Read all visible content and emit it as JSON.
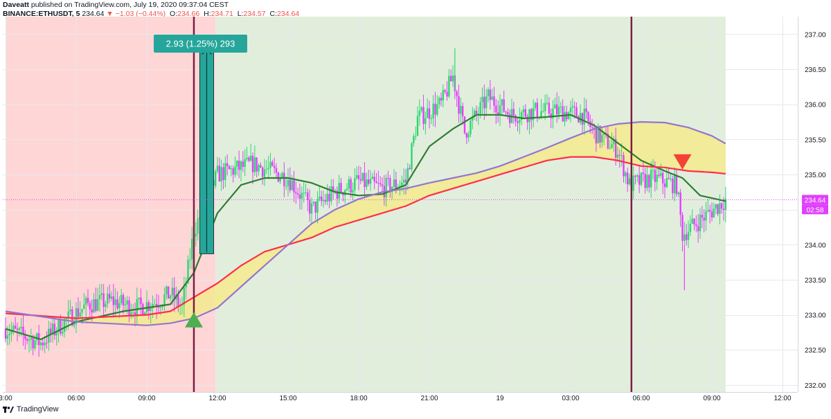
{
  "header": {
    "author": "Daveatt",
    "published_text": "published on TradingView.com, July 19, 2020 09:37:04 CEST",
    "symbol": "BINANCE:ETHUSDT, 5",
    "last": "234.64",
    "change": "▼ −1.03 (−0.44%)",
    "o_label": "O:",
    "o_val": "234.66",
    "h_label": "H:",
    "h_val": "234.71",
    "l_label": "L:",
    "l_val": "234.57",
    "c_label": "C:",
    "c_val": "234.64"
  },
  "footer": {
    "brand": "TradingView",
    "logo_icon": "tradingview-logo-icon"
  },
  "colors": {
    "red_zone": "#ffd6d6",
    "green_zone": "#e2eedc",
    "cloud": "#f3ea8e",
    "fast_ema": "#2e7d32",
    "slow_ema": "#ff2d4a",
    "cloud_edge": "#9575cd",
    "candle_up": "#2ed573",
    "candle_down": "#e040fb",
    "vline": "#7b1f45",
    "trade_box": "#26a69a",
    "buy_arrow": "#4caf50",
    "sell_arrow": "#f44336",
    "price_label": "#e040fb"
  },
  "chart_data": {
    "type": "candlestick",
    "symbol": "BINANCE:ETHUSDT",
    "interval": "5",
    "x_axis": {
      "tick_labels": [
        "3:00",
        "06:00",
        "09:00",
        "12:00",
        "15:00",
        "18:00",
        "21:00",
        "19",
        "03:00",
        "06:00",
        "09:00",
        "12:00"
      ]
    },
    "y_axis": {
      "ylim": [
        231.9,
        237.25
      ],
      "tick_labels": [
        "232.00",
        "232.50",
        "233.00",
        "233.50",
        "234.00",
        "234.50",
        "235.00",
        "235.50",
        "236.00",
        "236.50",
        "237.00"
      ]
    },
    "grid": true,
    "current_price": {
      "value": 234.64,
      "label": "234.64",
      "countdown": "02:58"
    },
    "trade_annotation": {
      "label": "2.93 (1.25%) 293",
      "entry": 233.87,
      "exit": 236.8
    },
    "price_path": [
      {
        "t": "2020-07-18 03:00",
        "p": 232.8
      },
      {
        "t": "2020-07-18 04:30",
        "p": 232.6
      },
      {
        "t": "2020-07-18 05:30",
        "p": 232.9
      },
      {
        "t": "2020-07-18 06:30",
        "p": 233.15
      },
      {
        "t": "2020-07-18 07:30",
        "p": 233.2
      },
      {
        "t": "2020-07-18 08:30",
        "p": 233.1
      },
      {
        "t": "2020-07-18 09:30",
        "p": 233.2
      },
      {
        "t": "2020-07-18 10:00",
        "p": 233.3
      },
      {
        "t": "2020-07-18 10:30",
        "p": 233.1
      },
      {
        "t": "2020-07-18 11:00",
        "p": 234.2
      },
      {
        "t": "2020-07-18 12:00",
        "p": 235.0
      },
      {
        "t": "2020-07-18 13:30",
        "p": 235.15
      },
      {
        "t": "2020-07-18 15:00",
        "p": 234.95
      },
      {
        "t": "2020-07-18 16:00",
        "p": 234.5
      },
      {
        "t": "2020-07-18 17:00",
        "p": 234.75
      },
      {
        "t": "2020-07-18 18:00",
        "p": 234.9
      },
      {
        "t": "2020-07-18 19:00",
        "p": 234.8
      },
      {
        "t": "2020-07-18 20:00",
        "p": 234.9
      },
      {
        "t": "2020-07-18 20:30",
        "p": 235.8
      },
      {
        "t": "2020-07-18 21:30",
        "p": 236.0
      },
      {
        "t": "2020-07-18 22:00",
        "p": 236.4
      },
      {
        "t": "2020-07-18 22:30",
        "p": 235.6
      },
      {
        "t": "2020-07-18 23:30",
        "p": 236.1
      },
      {
        "t": "2020-07-19 00:30",
        "p": 235.85
      },
      {
        "t": "2020-07-19 01:30",
        "p": 235.9
      },
      {
        "t": "2020-07-19 02:30",
        "p": 235.9
      },
      {
        "t": "2020-07-19 03:30",
        "p": 235.85
      },
      {
        "t": "2020-07-19 04:00",
        "p": 235.6
      },
      {
        "t": "2020-07-19 05:00",
        "p": 235.35
      },
      {
        "t": "2020-07-19 05:30",
        "p": 234.85
      },
      {
        "t": "2020-07-19 06:30",
        "p": 234.95
      },
      {
        "t": "2020-07-19 07:30",
        "p": 234.85
      },
      {
        "t": "2020-07-19 07:45",
        "p": 234.15
      },
      {
        "t": "2020-07-19 08:30",
        "p": 234.35
      },
      {
        "t": "2020-07-19 09:35",
        "p": 234.64
      }
    ],
    "series": [
      {
        "name": "",
        "color": "#2e7d32",
        "points": [
          {
            "t": "2020-07-18 03:00",
            "p": 232.8
          },
          {
            "t": "2020-07-18 04:30",
            "p": 232.65
          },
          {
            "t": "2020-07-18 06:00",
            "p": 232.9
          },
          {
            "t": "2020-07-18 08:00",
            "p": 233.05
          },
          {
            "t": "2020-07-18 10:00",
            "p": 233.15
          },
          {
            "t": "2020-07-18 11:00",
            "p": 233.6
          },
          {
            "t": "2020-07-18 12:00",
            "p": 234.45
          },
          {
            "t": "2020-07-18 13:00",
            "p": 234.85
          },
          {
            "t": "2020-07-18 14:00",
            "p": 234.95
          },
          {
            "t": "2020-07-18 15:00",
            "p": 234.95
          },
          {
            "t": "2020-07-18 16:00",
            "p": 234.88
          },
          {
            "t": "2020-07-18 17:00",
            "p": 234.75
          },
          {
            "t": "2020-07-18 18:00",
            "p": 234.7
          },
          {
            "t": "2020-07-18 19:00",
            "p": 234.72
          },
          {
            "t": "2020-07-18 20:00",
            "p": 234.85
          },
          {
            "t": "2020-07-18 21:00",
            "p": 235.4
          },
          {
            "t": "2020-07-18 22:00",
            "p": 235.65
          },
          {
            "t": "2020-07-18 23:00",
            "p": 235.85
          },
          {
            "t": "2020-07-19 00:00",
            "p": 235.85
          },
          {
            "t": "2020-07-19 01:00",
            "p": 235.8
          },
          {
            "t": "2020-07-19 02:00",
            "p": 235.82
          },
          {
            "t": "2020-07-19 03:00",
            "p": 235.85
          },
          {
            "t": "2020-07-19 04:00",
            "p": 235.7
          },
          {
            "t": "2020-07-19 05:00",
            "p": 235.45
          },
          {
            "t": "2020-07-19 06:00",
            "p": 235.2
          },
          {
            "t": "2020-07-19 07:00",
            "p": 235.05
          },
          {
            "t": "2020-07-19 07:45",
            "p": 234.95
          },
          {
            "t": "2020-07-19 08:30",
            "p": 234.7
          },
          {
            "t": "2020-07-19 09:35",
            "p": 234.62
          }
        ]
      },
      {
        "name": "",
        "color": "#ff2d4a",
        "points": [
          {
            "t": "2020-07-18 03:00",
            "p": 233.02
          },
          {
            "t": "2020-07-18 06:00",
            "p": 232.95
          },
          {
            "t": "2020-07-18 09:00",
            "p": 233.0
          },
          {
            "t": "2020-07-18 10:00",
            "p": 233.05
          },
          {
            "t": "2020-07-18 11:00",
            "p": 233.25
          },
          {
            "t": "2020-07-18 12:00",
            "p": 233.45
          },
          {
            "t": "2020-07-18 13:00",
            "p": 233.7
          },
          {
            "t": "2020-07-18 14:00",
            "p": 233.9
          },
          {
            "t": "2020-07-18 15:00",
            "p": 234.0
          },
          {
            "t": "2020-07-18 16:00",
            "p": 234.1
          },
          {
            "t": "2020-07-18 17:00",
            "p": 234.25
          },
          {
            "t": "2020-07-18 18:00",
            "p": 234.35
          },
          {
            "t": "2020-07-18 19:00",
            "p": 234.45
          },
          {
            "t": "2020-07-18 20:00",
            "p": 234.55
          },
          {
            "t": "2020-07-18 21:00",
            "p": 234.7
          },
          {
            "t": "2020-07-18 22:00",
            "p": 234.8
          },
          {
            "t": "2020-07-18 23:00",
            "p": 234.9
          },
          {
            "t": "2020-07-19 00:00",
            "p": 235.0
          },
          {
            "t": "2020-07-19 01:00",
            "p": 235.1
          },
          {
            "t": "2020-07-19 02:00",
            "p": 235.2
          },
          {
            "t": "2020-07-19 03:00",
            "p": 235.25
          },
          {
            "t": "2020-07-19 04:00",
            "p": 235.25
          },
          {
            "t": "2020-07-19 05:00",
            "p": 235.2
          },
          {
            "t": "2020-07-19 06:00",
            "p": 235.12
          },
          {
            "t": "2020-07-19 07:00",
            "p": 235.1
          },
          {
            "t": "2020-07-19 08:00",
            "p": 235.05
          },
          {
            "t": "2020-07-19 09:00",
            "p": 235.03
          },
          {
            "t": "2020-07-19 09:35",
            "p": 235.01
          }
        ]
      },
      {
        "name": "",
        "color": "#9575cd",
        "points": [
          {
            "t": "2020-07-18 03:00",
            "p": 233.05
          },
          {
            "t": "2020-07-18 06:00",
            "p": 232.9
          },
          {
            "t": "2020-07-18 09:00",
            "p": 232.85
          },
          {
            "t": "2020-07-18 10:00",
            "p": 232.88
          },
          {
            "t": "2020-07-18 11:00",
            "p": 232.95
          },
          {
            "t": "2020-07-18 12:00",
            "p": 233.1
          },
          {
            "t": "2020-07-18 13:00",
            "p": 233.4
          },
          {
            "t": "2020-07-18 14:00",
            "p": 233.7
          },
          {
            "t": "2020-07-18 15:00",
            "p": 234.0
          },
          {
            "t": "2020-07-18 16:00",
            "p": 234.3
          },
          {
            "t": "2020-07-18 17:00",
            "p": 234.5
          },
          {
            "t": "2020-07-18 18:00",
            "p": 234.65
          },
          {
            "t": "2020-07-18 19:00",
            "p": 234.75
          },
          {
            "t": "2020-07-18 20:00",
            "p": 234.8
          },
          {
            "t": "2020-07-18 21:00",
            "p": 234.88
          },
          {
            "t": "2020-07-18 22:00",
            "p": 234.95
          },
          {
            "t": "2020-07-18 23:00",
            "p": 235.02
          },
          {
            "t": "2020-07-19 00:00",
            "p": 235.12
          },
          {
            "t": "2020-07-19 01:00",
            "p": 235.25
          },
          {
            "t": "2020-07-19 02:00",
            "p": 235.38
          },
          {
            "t": "2020-07-19 03:00",
            "p": 235.52
          },
          {
            "t": "2020-07-19 04:00",
            "p": 235.65
          },
          {
            "t": "2020-07-19 05:00",
            "p": 235.72
          },
          {
            "t": "2020-07-19 06:00",
            "p": 235.75
          },
          {
            "t": "2020-07-19 07:00",
            "p": 235.74
          },
          {
            "t": "2020-07-19 08:00",
            "p": 235.67
          },
          {
            "t": "2020-07-19 09:00",
            "p": 235.55
          },
          {
            "t": "2020-07-19 09:35",
            "p": 235.44
          }
        ]
      }
    ],
    "signals": [
      {
        "type": "buy",
        "t": "2020-07-18 11:00",
        "p": 232.9
      },
      {
        "type": "sell",
        "t": "2020-07-19 07:45",
        "p": 235.15
      }
    ],
    "zones": [
      {
        "from": "2020-07-18 03:00",
        "to": "2020-07-18 11:55",
        "label": ""
      },
      {
        "from": "2020-07-18 11:55",
        "to": "2020-07-19 09:35",
        "label": ""
      }
    ],
    "vertical_lines": [
      "2020-07-18 11:00",
      "2020-07-19 05:35"
    ]
  }
}
